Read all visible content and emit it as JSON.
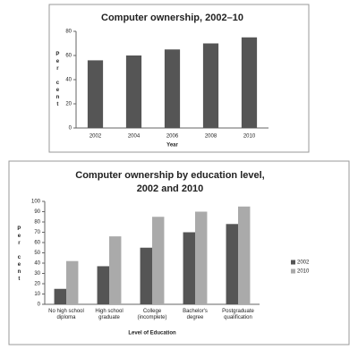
{
  "chart_data": [
    {
      "type": "bar",
      "title": "Computer ownership, 2002–10",
      "x_label": "Year",
      "y_label": "Per cent",
      "categories": [
        "2002",
        "2004",
        "2006",
        "2008",
        "2010"
      ],
      "values": [
        56,
        60,
        65,
        70,
        75
      ],
      "color": "#555555",
      "ylim": [
        0,
        80
      ],
      "yticks": [
        0,
        20,
        40,
        60,
        80
      ]
    },
    {
      "type": "grouped-bar",
      "title": [
        "Computer ownership by education level,",
        "2002 and 2010"
      ],
      "x_label": "Level of Education",
      "y_label": "Per cent",
      "categories": [
        "No high school diploma",
        "High school graduate",
        "College (incomplete)",
        "Bachelor's degree",
        "Postgraduate qualification"
      ],
      "series": [
        {
          "name": "2002",
          "color": "#555555",
          "values": [
            15,
            37,
            55,
            70,
            78
          ]
        },
        {
          "name": "2010",
          "color": "#aaaaaa",
          "values": [
            42,
            66,
            85,
            90,
            95
          ]
        }
      ],
      "ylim": [
        0,
        100
      ],
      "yticks": [
        0,
        10,
        20,
        30,
        40,
        50,
        60,
        70,
        80,
        90,
        100
      ],
      "legend": "right"
    }
  ]
}
